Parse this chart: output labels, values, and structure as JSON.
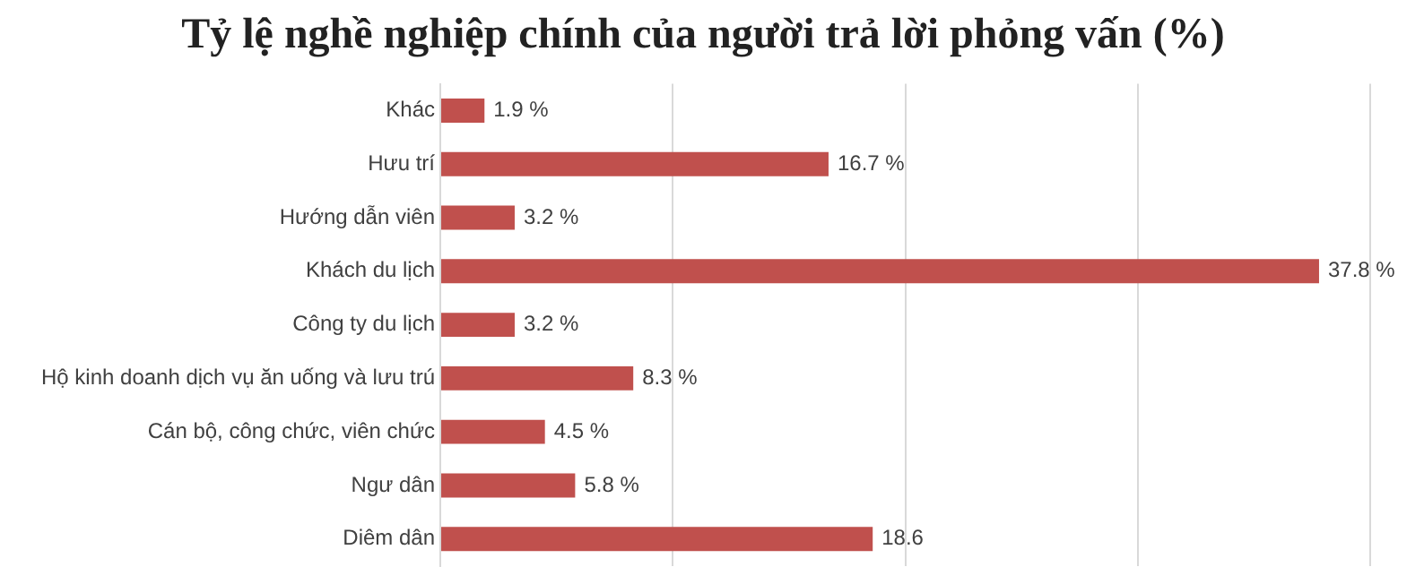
{
  "chart_data": {
    "type": "bar",
    "orientation": "horizontal",
    "title": "Tỷ lệ nghề nghiệp chính của người trả lời phỏng vấn (%)",
    "categories": [
      "Khác",
      "Hưu trí",
      "Hướng dẫn viên",
      "Khách du lịch",
      "Công ty du lịch",
      "Hộ kinh doanh dịch vụ ăn uống và lưu trú",
      "Cán bộ, công chức, viên chức",
      "Ngư dân",
      "Diêm dân"
    ],
    "values": [
      1.9,
      16.7,
      3.2,
      37.8,
      3.2,
      8.3,
      4.5,
      5.8,
      18.6
    ],
    "value_labels": [
      "1.9 %",
      "16.7 %",
      "3.2 %",
      "37.8 %",
      "3.2 %",
      "8.3 %",
      "4.5 %",
      "5.8 %",
      "18.6"
    ],
    "color": "#c0504d",
    "xlim": [
      0,
      40
    ],
    "xticks": [
      {
        "value": 0,
        "label": null
      },
      {
        "value": 10,
        "label": null
      },
      {
        "value": 20,
        "label": null
      },
      {
        "value": 30,
        "label": null
      },
      {
        "value": 40,
        "label": null
      }
    ],
    "grid": "x",
    "legend": false,
    "tick_labels": "y"
  }
}
